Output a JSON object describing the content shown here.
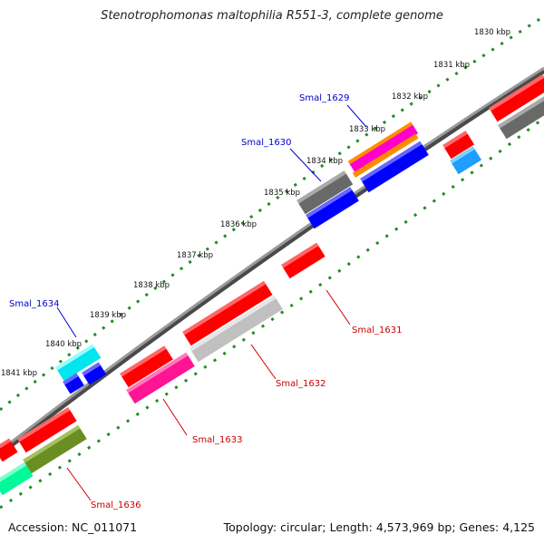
{
  "title": "Stenotrophomonas maltophilia R551-3, complete genome",
  "footer": {
    "accession": "Accession: NC_011071",
    "summary": "Topology: circular; Length: 4,573,969 bp; Genes: 4,125"
  },
  "kbp_ticks": [
    "1830 kbp",
    "1831 kbp",
    "1832 kbp",
    "1833 kbp",
    "1834 kbp",
    "1835 kbp",
    "1836 kbp",
    "1837 kbp",
    "1838 kbp",
    "1839 kbp",
    "1840 kbp",
    "1841 kbp"
  ],
  "gene_labels": {
    "smal_1629": "Smal_1629",
    "smal_1630": "Smal_1630",
    "smal_1634": "Smal_1634",
    "smal_1631": "Smal_1631",
    "smal_1632": "Smal_1632",
    "smal_1633": "Smal_1633",
    "smal_1636": "Smal_1636"
  },
  "colors": {
    "backbone": "#808080",
    "dots": "#228b22",
    "forward_label": "#0000cc",
    "reverse_label": "#cc0000",
    "red": "#ff0000",
    "blue": "#0000ff",
    "gray": "#696969",
    "light_gray": "#c0c0c0",
    "magenta": "#ff1493",
    "cyan": "#00e5ee",
    "sky": "#1e9fff",
    "olive": "#6b8e23",
    "spring": "#00fa9a",
    "orange": "#ff8c00"
  }
}
